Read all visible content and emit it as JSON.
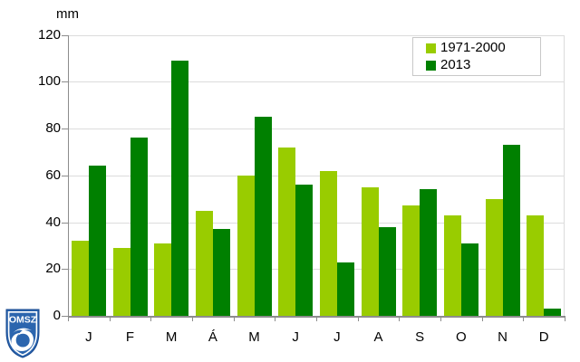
{
  "chart_data": {
    "type": "bar",
    "title": "",
    "ylabel": "mm",
    "categories": [
      "J",
      "F",
      "M",
      "Á",
      "M",
      "J",
      "J",
      "A",
      "S",
      "O",
      "N",
      "D"
    ],
    "series": [
      {
        "name": "1971-2000",
        "color": "#99CC00",
        "values": [
          32,
          29,
          31,
          45,
          60,
          72,
          62,
          55,
          47,
          43,
          50,
          43
        ]
      },
      {
        "name": "2013",
        "color": "#008000",
        "values": [
          64,
          76,
          109,
          37,
          85,
          56,
          23,
          38,
          54,
          31,
          73,
          3
        ]
      }
    ],
    "ylim": [
      0,
      120
    ],
    "ytick_step": 20,
    "grid": true,
    "legend_position": "top-right-inside"
  },
  "legend": {
    "items": [
      {
        "label": "1971-2000",
        "color": "#99CC00"
      },
      {
        "label": "2013",
        "color": "#008000"
      }
    ]
  },
  "logo": {
    "text": "OMSZ",
    "color": "#2b65ae"
  },
  "colors": {
    "grid": "#dcdcdc",
    "axis": "#8c8c8c",
    "legend_border": "#c8c8c8",
    "light_green": "#99CC00",
    "dark_green": "#008000",
    "logo_blue": "#2b65ae"
  }
}
